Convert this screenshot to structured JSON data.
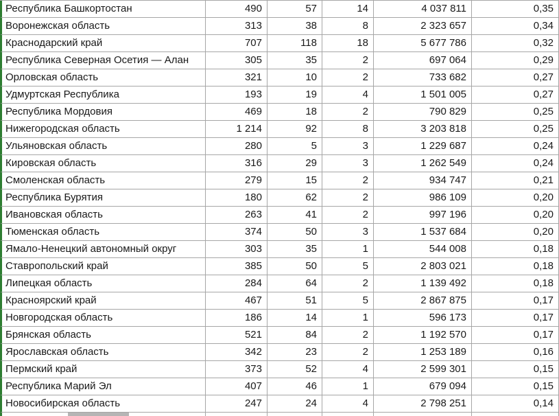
{
  "colors": {
    "accent_green": "#2e7d32",
    "gridline": "#a6a6a6",
    "gray_box": "#b5b5b5"
  },
  "table": {
    "columns": [
      "region",
      "value1",
      "value2",
      "value3",
      "population",
      "ratio"
    ],
    "rows": [
      [
        "Республика Башкортостан",
        "490",
        "57",
        "14",
        "4 037 811",
        "0,35"
      ],
      [
        "Воронежская область",
        "313",
        "38",
        "8",
        "2 323 657",
        "0,34"
      ],
      [
        "Краснодарский край",
        "707",
        "118",
        "18",
        "5 677 786",
        "0,32"
      ],
      [
        "Республика Северная Осетия — Алан",
        "305",
        "35",
        "2",
        "697 064",
        "0,29"
      ],
      [
        "Орловская область",
        "321",
        "10",
        "2",
        "733 682",
        "0,27"
      ],
      [
        "Удмуртская Республика",
        "193",
        "19",
        "4",
        "1 501 005",
        "0,27"
      ],
      [
        "Республика Мордовия",
        "469",
        "18",
        "2",
        "790 829",
        "0,25"
      ],
      [
        "Нижегородская область",
        "1 214",
        "92",
        "8",
        "3 203 818",
        "0,25"
      ],
      [
        "Ульяновская область",
        "280",
        "5",
        "3",
        "1 229 687",
        "0,24"
      ],
      [
        "Кировская область",
        "316",
        "29",
        "3",
        "1 262 549",
        "0,24"
      ],
      [
        "Смоленская область",
        "279",
        "15",
        "2",
        "934 747",
        "0,21"
      ],
      [
        "Республика Бурятия",
        "180",
        "62",
        "2",
        "986 109",
        "0,20"
      ],
      [
        "Ивановская область",
        "263",
        "41",
        "2",
        "997 196",
        "0,20"
      ],
      [
        "Тюменская область",
        "374",
        "50",
        "3",
        "1 537 684",
        "0,20"
      ],
      [
        "Ямало-Ненецкий автономный округ",
        "303",
        "35",
        "1",
        "544 008",
        "0,18"
      ],
      [
        "Ставропольский край",
        "385",
        "50",
        "5",
        "2 803 021",
        "0,18"
      ],
      [
        "Липецкая область",
        "284",
        "64",
        "2",
        "1 139 492",
        "0,18"
      ],
      [
        "Красноярский край",
        "467",
        "51",
        "5",
        "2 867 875",
        "0,17"
      ],
      [
        "Новгородская область",
        "186",
        "14",
        "1",
        "596 173",
        "0,17"
      ],
      [
        "Брянская область",
        "521",
        "84",
        "2",
        "1 192 570",
        "0,17"
      ],
      [
        "Ярославская область",
        "342",
        "23",
        "2",
        "1 253 189",
        "0,16"
      ],
      [
        "Пермский край",
        "373",
        "52",
        "4",
        "2 599 301",
        "0,15"
      ],
      [
        "Республика Марий Эл",
        "407",
        "46",
        "1",
        "679 094",
        "0,15"
      ],
      [
        "Новосибирская область",
        "247",
        "24",
        "4",
        "2 798 251",
        "0,14"
      ]
    ]
  }
}
